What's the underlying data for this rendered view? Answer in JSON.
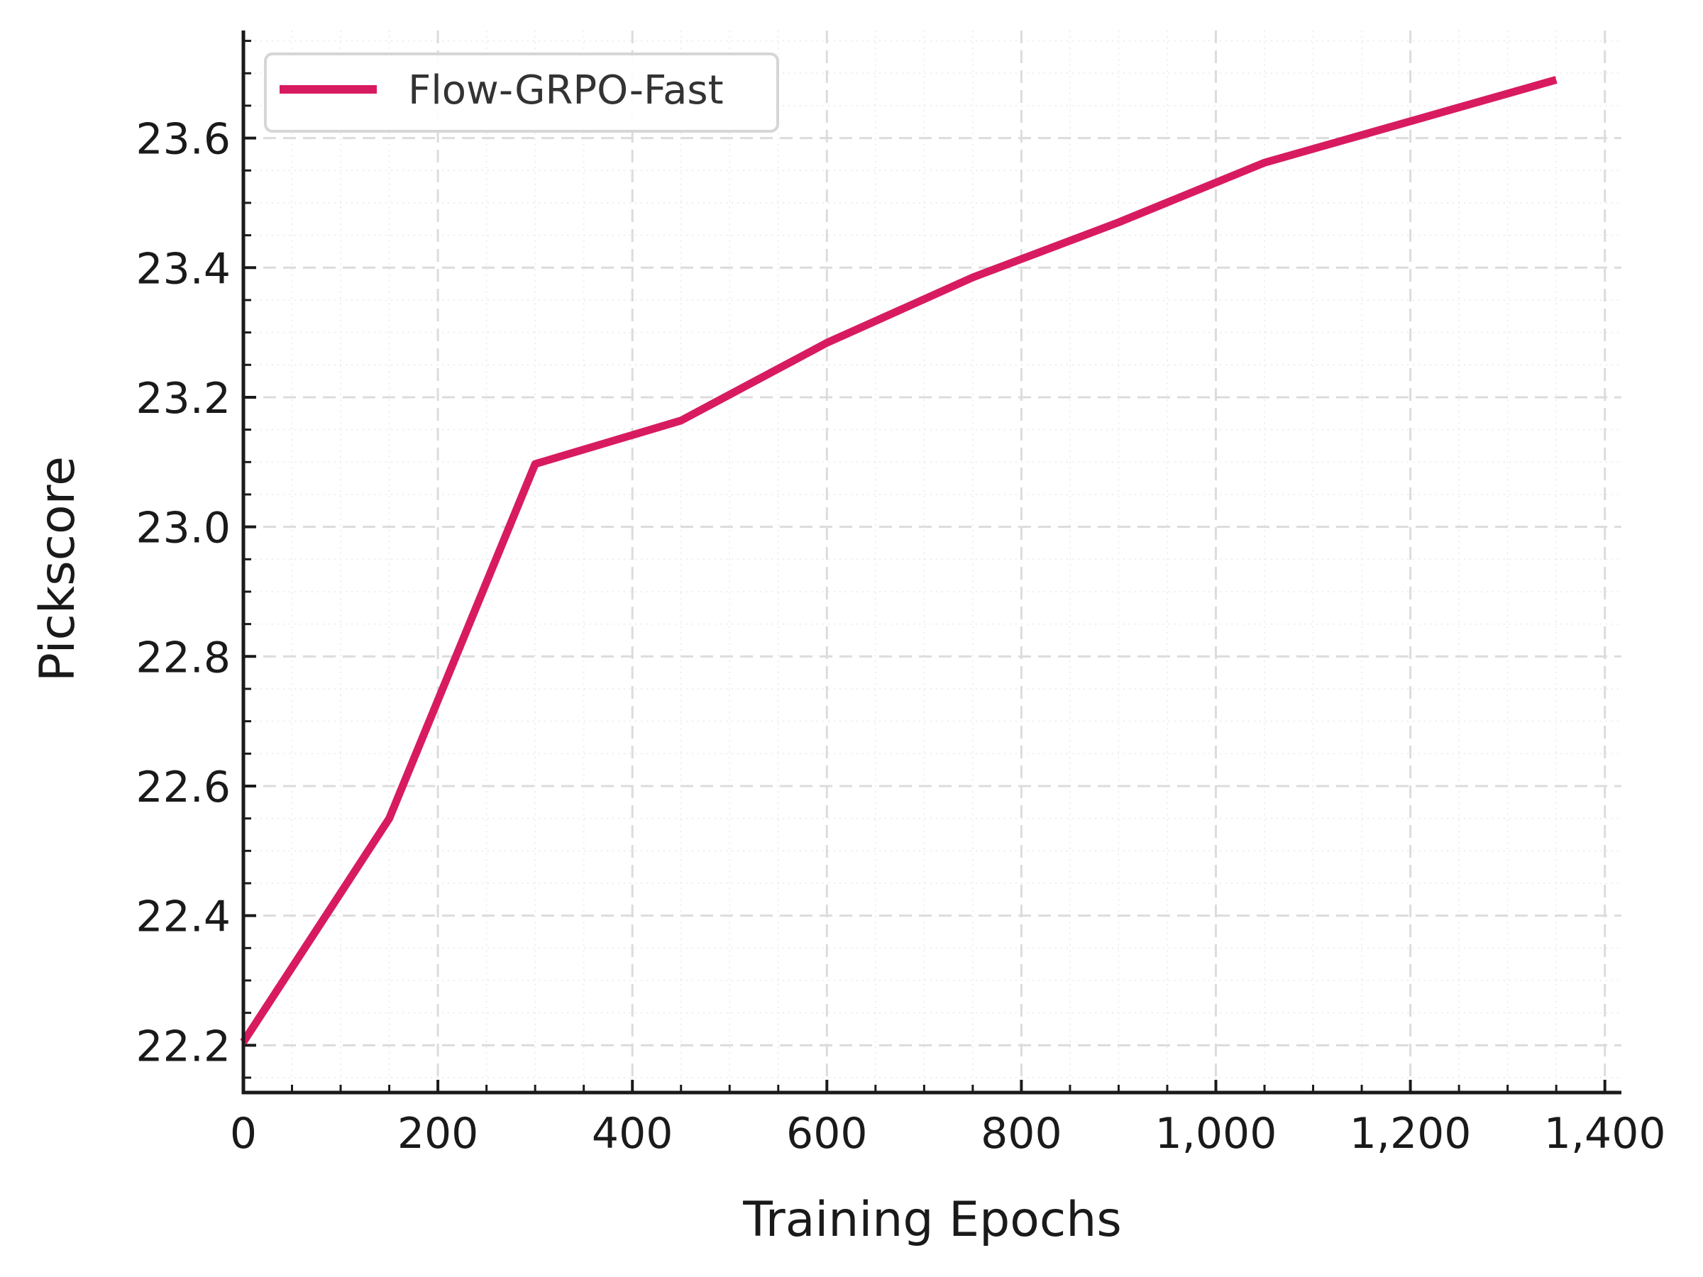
{
  "chart_data": {
    "type": "line",
    "title": "",
    "xlabel": "Training Epochs",
    "ylabel": "Pickscore",
    "xlim": [
      0,
      1417
    ],
    "ylim": [
      22.127,
      23.766
    ],
    "xticks": [
      0,
      200,
      400,
      600,
      800,
      1000,
      1200,
      1400
    ],
    "xtick_labels": [
      "0",
      "200",
      "400",
      "600",
      "800",
      "1,000",
      "1,200",
      "1,400"
    ],
    "yticks": [
      22.2,
      22.4,
      22.6,
      22.8,
      23.0,
      23.2,
      23.4,
      23.6
    ],
    "ytick_labels": [
      "22.2",
      "22.4",
      "22.6",
      "22.8",
      "23.0",
      "23.2",
      "23.4",
      "23.6"
    ],
    "grid": true,
    "legend_position": "upper left",
    "series": [
      {
        "name": "Flow-GRPO-Fast",
        "color": "#d81b60",
        "x": [
          0,
          150,
          300,
          450,
          600,
          750,
          900,
          1050,
          1200,
          1350
        ],
        "values": [
          22.205,
          22.55,
          23.097,
          23.164,
          23.284,
          23.385,
          23.47,
          23.562,
          23.626,
          23.69
        ]
      }
    ]
  },
  "legend": {
    "label": "Flow-GRPO-Fast"
  }
}
